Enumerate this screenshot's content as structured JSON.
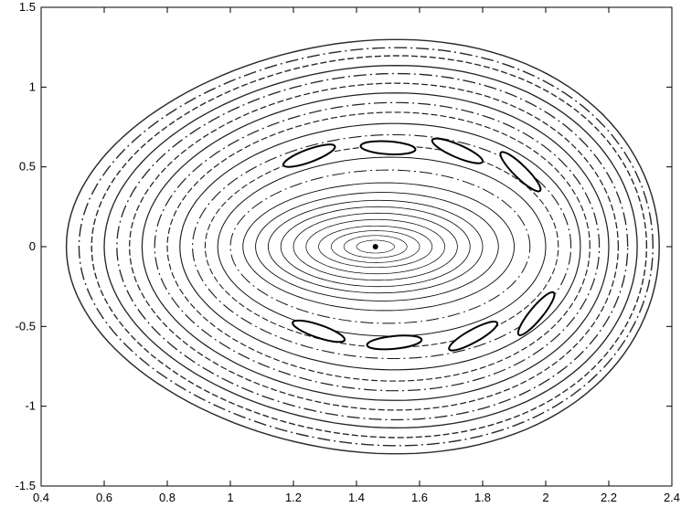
{
  "chart_data": {
    "type": "scatter",
    "title": "",
    "xlabel": "",
    "ylabel": "",
    "xlim": [
      0.4,
      2.4
    ],
    "ylim": [
      -1.5,
      1.5
    ],
    "x_ticks": [
      0.4,
      0.6,
      0.8,
      1,
      1.2,
      1.4,
      1.6,
      1.8,
      2,
      2.2,
      2.4
    ],
    "x_tick_labels": [
      "0.4",
      "0.6",
      "0.8",
      "1",
      "1.2",
      "1.4",
      "1.6",
      "1.8",
      "2",
      "2.2",
      "2.4"
    ],
    "y_ticks": [
      -1.5,
      -1,
      -0.5,
      0,
      0.5,
      1,
      1.5
    ],
    "y_tick_labels": [
      "-1.5",
      "-1",
      "-0.5",
      "0",
      "0.5",
      "1",
      "1.5"
    ],
    "grid": false,
    "legend": "none",
    "point_color": "#000000",
    "center": {
      "x": 1.46,
      "y": 0
    },
    "series": [
      {
        "kind": "invariant-curves",
        "description_values": "nested closed orbits around the elliptic point; each entry gives x-extent left/right and y half-height",
        "curves": [
          {
            "x_left": 1.4,
            "x_right": 1.52,
            "y_half": 0.04
          },
          {
            "x_left": 1.36,
            "x_right": 1.56,
            "y_half": 0.07
          },
          {
            "x_left": 1.32,
            "x_right": 1.6,
            "y_half": 0.1
          },
          {
            "x_left": 1.28,
            "x_right": 1.64,
            "y_half": 0.13
          },
          {
            "x_left": 1.24,
            "x_right": 1.68,
            "y_half": 0.17
          },
          {
            "x_left": 1.2,
            "x_right": 1.72,
            "y_half": 0.21
          },
          {
            "x_left": 1.16,
            "x_right": 1.76,
            "y_half": 0.25
          },
          {
            "x_left": 1.12,
            "x_right": 1.8,
            "y_half": 0.29
          },
          {
            "x_left": 1.08,
            "x_right": 1.85,
            "y_half": 0.34
          },
          {
            "x_left": 1.04,
            "x_right": 1.9,
            "y_half": 0.4
          },
          {
            "x_left": 1.0,
            "x_right": 1.95,
            "y_half": 0.48
          },
          {
            "x_left": 0.96,
            "x_right": 2.0,
            "y_half": 0.56
          },
          {
            "x_left": 0.92,
            "x_right": 2.04,
            "y_half": 0.63
          },
          {
            "x_left": 0.88,
            "x_right": 2.08,
            "y_half": 0.7
          },
          {
            "x_left": 0.84,
            "x_right": 2.11,
            "y_half": 0.77
          },
          {
            "x_left": 0.8,
            "x_right": 2.14,
            "y_half": 0.84
          },
          {
            "x_left": 0.76,
            "x_right": 2.17,
            "y_half": 0.9
          },
          {
            "x_left": 0.72,
            "x_right": 2.2,
            "y_half": 0.96
          },
          {
            "x_left": 0.68,
            "x_right": 2.23,
            "y_half": 1.02
          },
          {
            "x_left": 0.64,
            "x_right": 2.26,
            "y_half": 1.08
          },
          {
            "x_left": 0.6,
            "x_right": 2.29,
            "y_half": 1.13
          },
          {
            "x_left": 0.56,
            "x_right": 2.32,
            "y_half": 1.19
          },
          {
            "x_left": 0.52,
            "x_right": 2.34,
            "y_half": 1.24
          },
          {
            "x_left": 0.48,
            "x_right": 2.36,
            "y_half": 1.29
          }
        ]
      },
      {
        "kind": "island-chain",
        "description_values": "crescent-shaped islands along the resonant band",
        "islands": [
          {
            "x": 1.92,
            "y": 0.47
          },
          {
            "x": 1.97,
            "y": -0.42
          },
          {
            "x": 1.72,
            "y": 0.6
          },
          {
            "x": 1.77,
            "y": -0.56
          },
          {
            "x": 1.5,
            "y": 0.62
          },
          {
            "x": 1.52,
            "y": -0.6
          },
          {
            "x": 1.25,
            "y": 0.57
          },
          {
            "x": 1.28,
            "y": -0.53
          }
        ]
      }
    ]
  }
}
